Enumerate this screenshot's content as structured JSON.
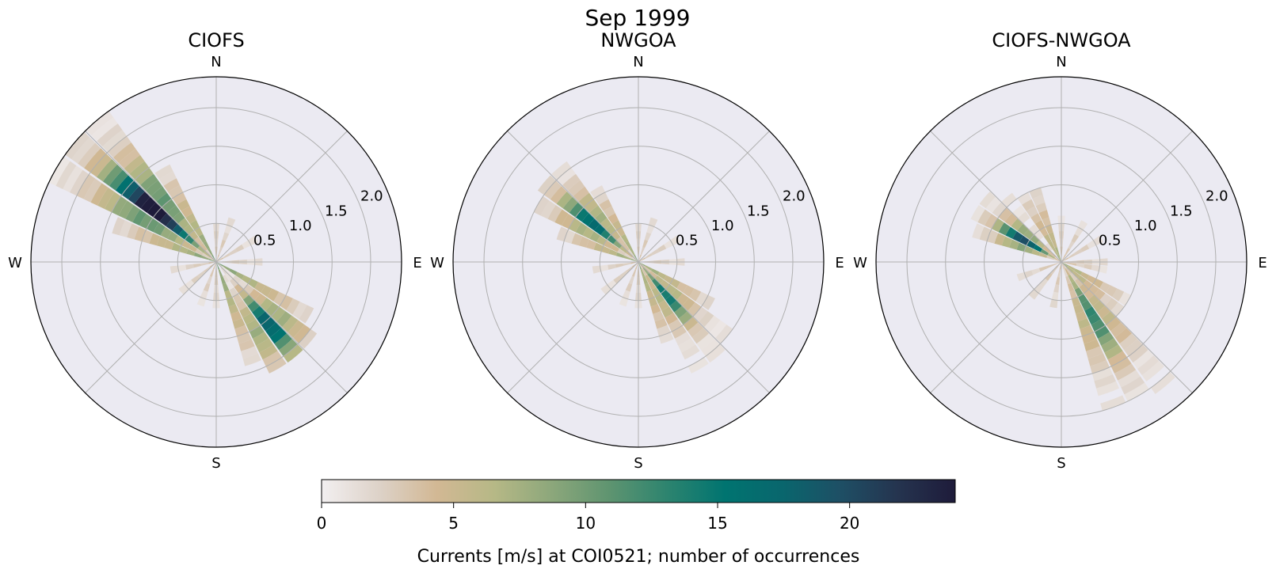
{
  "chart_data": {
    "type": "polar-histogram",
    "title": "Sep 1999",
    "colorbar": {
      "label": "Currents [m/s] at COI0521; number of occurrences",
      "ticks": [
        0,
        5,
        10,
        15,
        20
      ],
      "range": [
        0,
        24
      ],
      "colors": [
        "#f2eff0",
        "#ddd2c8",
        "#d2b894",
        "#b6b886",
        "#8ca77b",
        "#5e9470",
        "#2d846f",
        "#007470",
        "#09666d",
        "#1e4f65",
        "#25344f",
        "#1e1b3a"
      ]
    },
    "direction_labels": [
      "N",
      "E",
      "S",
      "W"
    ],
    "radial_ticks": [
      "0.5",
      "1.0",
      "1.5",
      "2.0"
    ],
    "r_max": 2.4,
    "bin_width_deg": 10,
    "subplots": [
      {
        "title": "CIOFS",
        "clusters": [
          {
            "dirs": [
              300,
              310,
              320
            ],
            "r_max": 2.35,
            "peak": 24,
            "peak_dir": 310,
            "peak_r": 1.05
          },
          {
            "dirs": [
              130,
              140,
              150
            ],
            "r_max": 1.55,
            "peak": 17,
            "peak_dir": 140,
            "peak_r": 1.05
          },
          {
            "dirs": [
              290,
              330,
              120,
              160
            ],
            "r_max": 1.4,
            "peak": 9,
            "peak_dir": 0,
            "peak_r": 0
          },
          {
            "dirs": [
              0,
              20,
              60,
              90,
              180,
              200,
              230,
              260
            ],
            "r_max": 0.55,
            "peak": 3,
            "peak_dir": 0,
            "peak_r": 0
          }
        ]
      },
      {
        "title": "NWGOA",
        "clusters": [
          {
            "dirs": [
              300,
              310,
              320
            ],
            "r_max": 1.65,
            "peak": 16,
            "peak_dir": 310,
            "peak_r": 0.75
          },
          {
            "dirs": [
              130,
              140,
              150
            ],
            "r_max": 1.55,
            "peak": 14,
            "peak_dir": 140,
            "peak_r": 0.55
          },
          {
            "dirs": [
              290,
              330,
              120,
              160
            ],
            "r_max": 1.1,
            "peak": 8,
            "peak_dir": 0,
            "peak_r": 0
          },
          {
            "dirs": [
              0,
              20,
              60,
              90,
              180,
              200,
              230,
              260
            ],
            "r_max": 0.55,
            "peak": 3,
            "peak_dir": 0,
            "peak_r": 0
          }
        ]
      },
      {
        "title": "CIOFS-NWGOA",
        "clusters": [
          {
            "dirs": [
              290,
              300,
              310,
              320
            ],
            "r_max": 1.25,
            "peak": 19,
            "peak_dir": 300,
            "peak_r": 0.55
          },
          {
            "dirs": [
              140,
              150,
              160
            ],
            "r_max": 2.1,
            "peak": 12,
            "peak_dir": 150,
            "peak_r": 0.8
          },
          {
            "dirs": [
              330,
              340,
              120,
              130
            ],
            "r_max": 1.0,
            "peak": 7,
            "peak_dir": 0,
            "peak_r": 0
          },
          {
            "dirs": [
              0,
              30,
              60,
              90,
              100,
              190,
              220,
              250
            ],
            "r_max": 0.6,
            "peak": 3,
            "peak_dir": 0,
            "peak_r": 0
          }
        ]
      }
    ]
  }
}
